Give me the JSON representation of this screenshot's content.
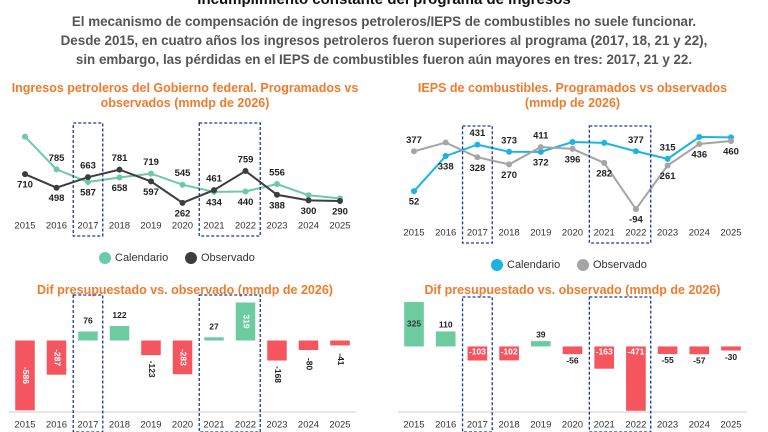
{
  "header": {
    "title": "Incumplimiento constante del programa de ingresos",
    "subtitle": [
      "El mecanismo de compensación de ingresos petroleros/IEPS de combustibles no suele funcionar.",
      "Desde 2015, en cuatro años los ingresos petroleros fueron superiores al programa (2017, 18, 21 y 22),",
      "sin embargo, las pérdidas en el IEPS de combustibles fueron aún mayores en tres: 2017, 21 y 22."
    ]
  },
  "chart_data": [
    {
      "type": "line",
      "title": "Ingresos petroleros del Gobierno federal. Programados vs observados (mmdp de 2026)",
      "categories": [
        "2015",
        "2016",
        "2017",
        "2018",
        "2019",
        "2020",
        "2021",
        "2022",
        "2023",
        "2024",
        "2025"
      ],
      "ylim": [
        150,
        1400
      ],
      "series": [
        {
          "name": "Calendario",
          "color": "#6ccaa9",
          "values": [
            1296,
            785,
            587,
            658,
            719,
            545,
            434,
            440,
            556,
            380,
            331
          ],
          "value_labels": [
            null,
            "785",
            "587",
            "658",
            "719",
            "545",
            "434",
            "440",
            "556",
            null,
            null
          ]
        },
        {
          "name": "Observado",
          "color": "#3d3d3d",
          "values": [
            710,
            498,
            663,
            781,
            597,
            262,
            461,
            759,
            388,
            300,
            290
          ],
          "value_labels": [
            "710",
            "498",
            "663",
            "781",
            "597",
            "262",
            "461",
            "759",
            "388",
            "300",
            "290"
          ]
        }
      ]
    },
    {
      "type": "line",
      "title": "IEPS de combustibles. Programados vs observados (mmdp de 2026)",
      "categories": [
        "2015",
        "2016",
        "2017",
        "2018",
        "2019",
        "2020",
        "2021",
        "2022",
        "2023",
        "2024",
        "2025"
      ],
      "ylim": [
        -150,
        550
      ],
      "series": [
        {
          "name": "Calendario",
          "color": "#1bb3e3",
          "values": [
            52,
            338,
            431,
            373,
            372,
            452,
            445,
            377,
            315,
            493,
            490
          ],
          "value_labels": [
            "52",
            "338",
            "431",
            "373",
            "372",
            null,
            null,
            "377",
            "315",
            null,
            null
          ]
        },
        {
          "name": "Observado",
          "color": "#a5a5a5",
          "values": [
            377,
            448,
            328,
            270,
            411,
            396,
            282,
            -94,
            261,
            436,
            460
          ],
          "value_labels": [
            "377",
            null,
            "328",
            "270",
            "411",
            "396",
            "282",
            "-94",
            "261",
            "436",
            "460"
          ]
        }
      ]
    },
    {
      "type": "bar",
      "title": "Dif presupuestado vs. observado (mmdp de 2026)",
      "categories": [
        "2015",
        "2016",
        "2017",
        "2018",
        "2019",
        "2020",
        "2021",
        "2022",
        "2023",
        "2024",
        "2025"
      ],
      "values": [
        -586,
        -287,
        76,
        122,
        -123,
        -283,
        27,
        319,
        -168,
        -80,
        -41
      ],
      "ylim": [
        -600,
        340
      ],
      "positive_color": "#6ccca0",
      "negative_color": "#f4555f"
    },
    {
      "type": "bar",
      "title": "Dif presupuestado vs. observado (mmdp de 2026)",
      "categories": [
        "2015",
        "2016",
        "2017",
        "2018",
        "2019",
        "2020",
        "2021",
        "2022",
        "2023",
        "2024",
        "2025"
      ],
      "values": [
        325,
        110,
        -103,
        -102,
        39,
        -56,
        -163,
        -471,
        -55,
        -57,
        -30
      ],
      "ylim": [
        -480,
        340
      ],
      "positive_color": "#6ccca0",
      "negative_color": "#f4555f"
    }
  ]
}
